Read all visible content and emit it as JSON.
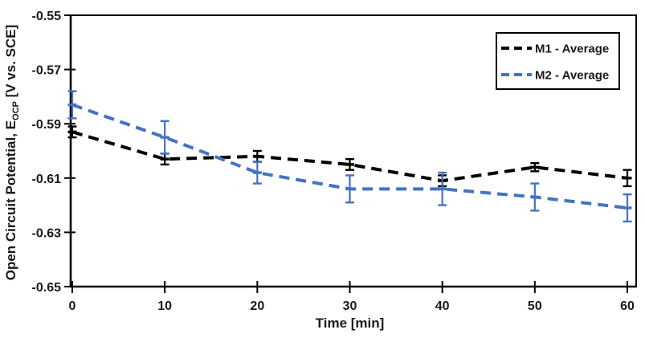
{
  "chart_data": {
    "type": "line",
    "title": "",
    "xlabel": "Time [min]",
    "ylabel": {
      "main": "Open Circuit Potential, E",
      "sub": "OCP",
      "unit": " [V vs. SCE]"
    },
    "x": [
      0,
      10,
      20,
      30,
      40,
      50,
      60
    ],
    "xticks": [
      0,
      10,
      20,
      30,
      40,
      50,
      60
    ],
    "yticks": [
      -0.55,
      -0.57,
      -0.59,
      -0.61,
      -0.63,
      -0.65
    ],
    "xlim": [
      0,
      61
    ],
    "ylim": [
      -0.65,
      -0.55
    ],
    "grid": false,
    "plot_border": true,
    "legend_position": "top-right",
    "axis_color": "#000000",
    "background_color": "#ffffff",
    "series": [
      {
        "name": "M1 - Average",
        "color": "#000000",
        "style": "dashed",
        "values": [
          -0.593,
          -0.603,
          -0.602,
          -0.605,
          -0.611,
          -0.606,
          -0.61
        ],
        "errors": [
          0.002,
          0.002,
          0.002,
          0.002,
          0.002,
          0.0015,
          0.003
        ]
      },
      {
        "name": "M2 - Average",
        "color": "#4472C4",
        "style": "dashed",
        "values": [
          -0.583,
          -0.595,
          -0.608,
          -0.614,
          -0.614,
          -0.617,
          -0.621
        ],
        "errors": [
          0.005,
          0.006,
          0.004,
          0.005,
          0.006,
          0.005,
          0.005
        ]
      }
    ]
  }
}
